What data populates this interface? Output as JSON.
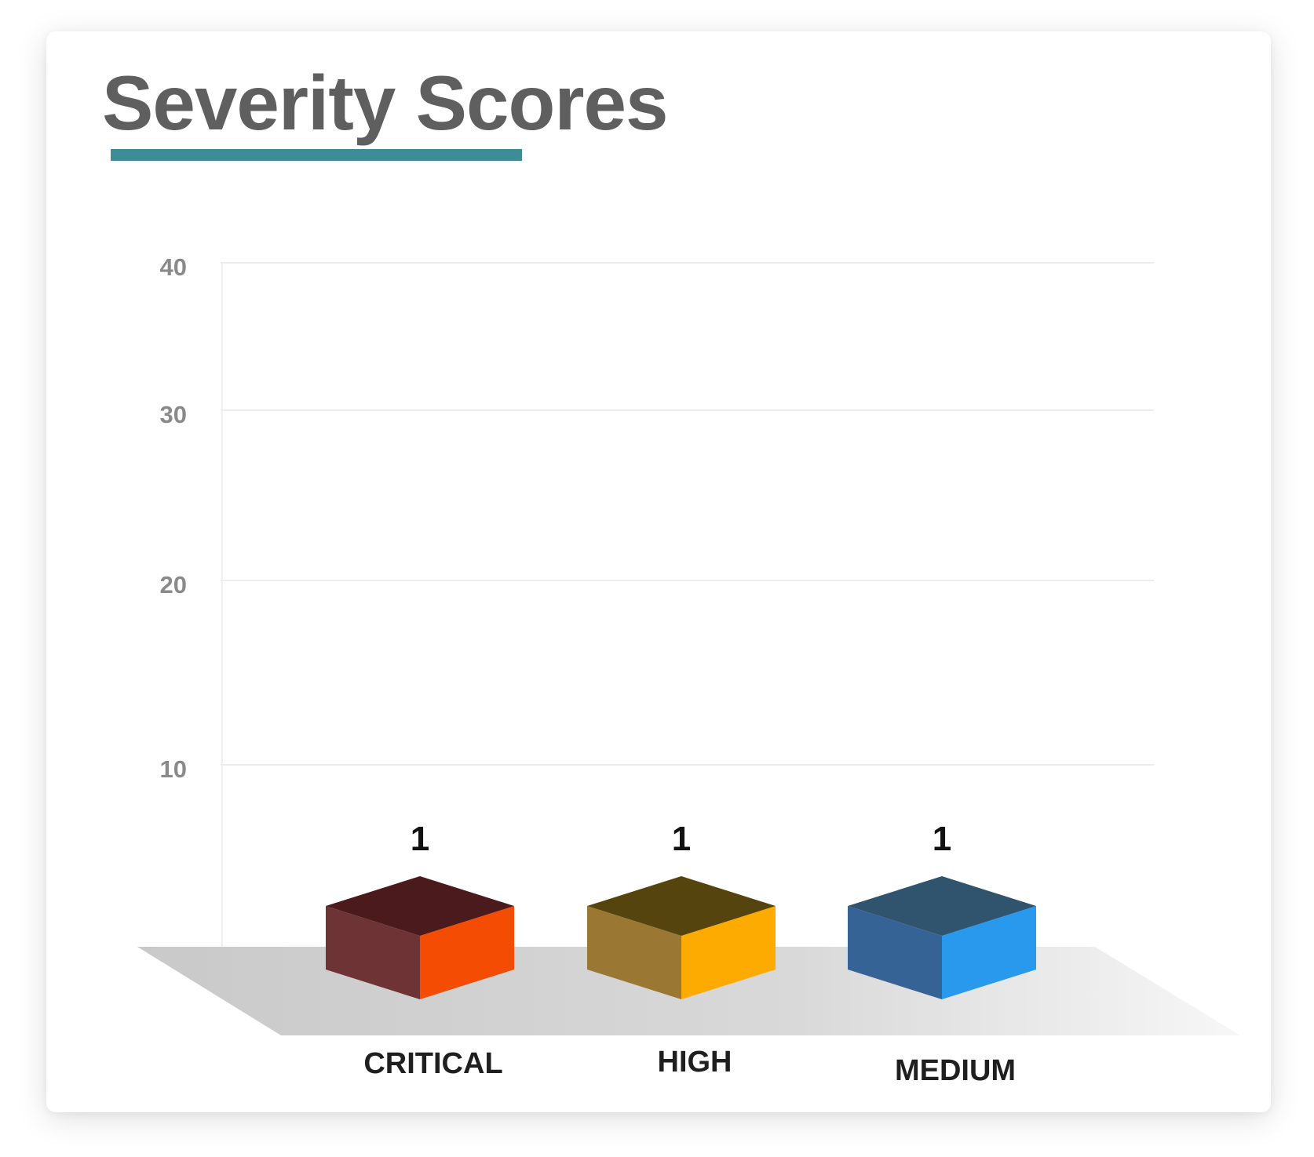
{
  "card": {
    "title": "Severity Scores",
    "accent_color": "#3d8c96"
  },
  "chart_data": {
    "type": "bar",
    "title": "Severity Scores",
    "xlabel": "",
    "ylabel": "",
    "ylim": [
      0,
      40
    ],
    "yticks": [
      10,
      20,
      30,
      40
    ],
    "grid": true,
    "style": "3d-cube",
    "categories": [
      "CRITICAL",
      "HIGH",
      "MEDIUM"
    ],
    "values": [
      1,
      1,
      1
    ],
    "colors": [
      {
        "top": "#4a1a1d",
        "left": "#6e3334",
        "right": "#f54c04"
      },
      {
        "top": "#55440e",
        "left": "#9a7833",
        "right": "#fdab00"
      },
      {
        "top": "#30536e",
        "left": "#366396",
        "right": "#2899ed"
      }
    ]
  }
}
